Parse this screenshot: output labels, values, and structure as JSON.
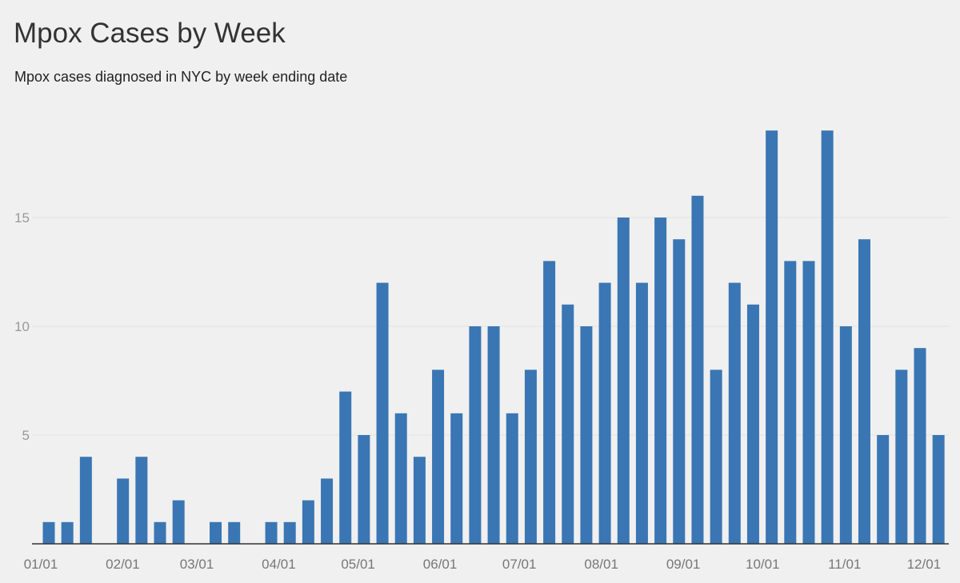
{
  "chart_data": {
    "type": "bar",
    "title": "Mpox Cases by Week",
    "subtitle": "Mpox cases diagnosed in NYC by week ending date",
    "xlabel": "",
    "ylabel": "",
    "x_tick_labels": [
      "01/01",
      "02/01",
      "03/01",
      "04/01",
      "05/01",
      "06/01",
      "07/01",
      "08/01",
      "09/01",
      "10/01",
      "11/01",
      "12/01"
    ],
    "y_ticks": [
      5,
      10,
      15
    ],
    "ylim": [
      0,
      20
    ],
    "grid": true,
    "bar_color": "#3a76b3",
    "values": [
      1,
      1,
      4,
      0,
      3,
      4,
      1,
      2,
      0,
      1,
      1,
      0,
      1,
      1,
      2,
      3,
      7,
      5,
      12,
      6,
      4,
      8,
      6,
      10,
      10,
      6,
      8,
      13,
      11,
      10,
      12,
      15,
      12,
      15,
      14,
      16,
      8,
      12,
      11,
      19,
      13,
      13,
      19,
      10,
      14,
      5,
      8,
      9,
      5
    ]
  }
}
